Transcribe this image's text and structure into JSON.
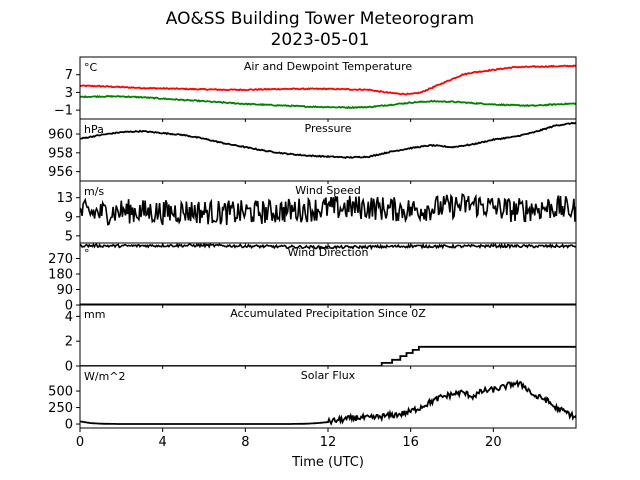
{
  "title_line1": "AO&SS Building Tower Meteorogram",
  "title_line2": "2023-05-01",
  "chart_data": {
    "type": "line",
    "xlabel": "Time (UTC)",
    "x_ticks": [
      0,
      4,
      8,
      12,
      16,
      20
    ],
    "xlim": [
      0,
      24
    ],
    "panels": [
      {
        "key": "temp",
        "title": "Air and Dewpoint Temperature",
        "unit": "°C",
        "ylim": [
          -3,
          11
        ],
        "y_ticks": [
          -1,
          3,
          7
        ],
        "y_tick_labels": [
          "−1",
          "3",
          "7"
        ],
        "series": [
          {
            "color": "#ff0000",
            "x": [
              0,
              1,
              2,
              3,
              4,
              5,
              6,
              7,
              8,
              9,
              10,
              11,
              12,
              13,
              14,
              14.5,
              15,
              15.5,
              16,
              16.5,
              17,
              17.5,
              18,
              18.5,
              19,
              19.5,
              20,
              20.5,
              21,
              22,
              23,
              24
            ],
            "y": [
              4.5,
              4.4,
              4.2,
              4.0,
              3.9,
              3.8,
              3.7,
              3.6,
              3.6,
              3.7,
              3.8,
              3.8,
              3.8,
              3.7,
              3.6,
              3.2,
              2.9,
              2.7,
              2.6,
              3.0,
              4.0,
              5.0,
              6.0,
              7.0,
              7.5,
              7.8,
              8.1,
              8.4,
              8.7,
              8.8,
              8.9,
              9.0
            ]
          },
          {
            "color": "#008000",
            "x": [
              0,
              1,
              2,
              3,
              4,
              5,
              6,
              7,
              8,
              9,
              10,
              11,
              12,
              13,
              14,
              15,
              16,
              17,
              18,
              19,
              20,
              21,
              22,
              23,
              24
            ],
            "y": [
              2.0,
              2.1,
              2.1,
              1.9,
              1.6,
              1.3,
              1.0,
              0.7,
              0.4,
              0.2,
              0.0,
              -0.2,
              -0.3,
              -0.4,
              -0.3,
              0.2,
              0.7,
              1.0,
              0.9,
              0.6,
              0.3,
              0.1,
              0.0,
              0.3,
              0.5
            ]
          }
        ]
      },
      {
        "key": "press",
        "title": "Pressure",
        "unit": "hPa",
        "ylim": [
          955,
          961.6
        ],
        "y_ticks": [
          956,
          958,
          960
        ],
        "y_tick_labels": [
          "956",
          "958",
          "960"
        ],
        "series": [
          {
            "color": "#000000",
            "x": [
              0,
              1,
              2,
              3,
              4,
              5,
              6,
              7,
              8,
              9,
              10,
              11,
              12,
              13,
              14,
              15,
              16,
              17,
              18,
              19,
              20,
              21,
              22,
              23,
              24
            ],
            "y": [
              959.5,
              959.9,
              960.2,
              960.3,
              960.1,
              959.9,
              959.5,
              959.0,
              958.6,
              958.2,
              957.9,
              957.7,
              957.6,
              957.5,
              957.6,
              958.1,
              958.5,
              958.8,
              958.6,
              958.9,
              959.4,
              959.7,
              960.2,
              960.9,
              961.2
            ]
          }
        ]
      },
      {
        "key": "wspd",
        "title": "Wind Speed",
        "unit": "m/s",
        "ylim": [
          3.5,
          16.5
        ],
        "y_ticks": [
          5,
          9,
          13
        ],
        "y_tick_labels": [
          "5",
          "9",
          "13"
        ],
        "series": [
          {
            "color": "#000000",
            "x": [
              0,
              1,
              2,
              3,
              4,
              5,
              6,
              7,
              8,
              9,
              10,
              11,
              12,
              13,
              14,
              15,
              16,
              17,
              18,
              19,
              20,
              21,
              22,
              23,
              24
            ],
            "y": [
              10.0,
              9.8,
              10.2,
              10.1,
              9.9,
              10.2,
              10.0,
              9.8,
              9.9,
              10.0,
              10.3,
              10.5,
              10.8,
              10.9,
              11.0,
              10.6,
              10.4,
              10.8,
              11.2,
              11.6,
              11.0,
              10.3,
              10.7,
              11.0,
              10.4
            ],
            "note": "noisy gusts roughly ±2.5 m/s about the trend"
          }
        ]
      },
      {
        "key": "wdir",
        "title": "Wind Direction",
        "unit": "°",
        "ylim": [
          0,
          360
        ],
        "y_ticks": [
          0,
          90,
          180,
          270
        ],
        "y_tick_labels": [
          "0",
          "90",
          "180",
          "270"
        ],
        "series": [
          {
            "color": "#000000",
            "x": [
              0,
              2,
              4,
              6,
              8,
              10,
              12,
              14,
              16,
              18,
              20,
              22,
              24
            ],
            "y": [
              345,
              343,
              345,
              346,
              342,
              338,
              335,
              337,
              342,
              340,
              343,
              341,
              342
            ]
          }
        ]
      },
      {
        "key": "precip",
        "title": "Accumulated Precipitation Since 0Z",
        "unit": "mm",
        "ylim": [
          0,
          5
        ],
        "y_ticks": [
          0,
          2,
          4
        ],
        "y_tick_labels": [
          "0",
          "2",
          "4"
        ],
        "series": [
          {
            "color": "#000000",
            "step": true,
            "x": [
              0,
              14.6,
              14.6,
              15.1,
              15.1,
              15.5,
              15.5,
              15.8,
              15.8,
              16.1,
              16.1,
              16.4,
              16.4,
              24
            ],
            "y": [
              0,
              0,
              0.25,
              0.25,
              0.5,
              0.5,
              0.8,
              0.8,
              1.05,
              1.05,
              1.3,
              1.3,
              1.55,
              1.55
            ]
          }
        ]
      },
      {
        "key": "solar",
        "title": "Solar Flux",
        "unit": "W/m^2",
        "ylim": [
          -60,
          880
        ],
        "y_ticks": [
          0,
          250,
          500
        ],
        "y_tick_labels": [
          "0",
          "250",
          "500"
        ],
        "series": [
          {
            "color": "#000000",
            "x": [
              0,
              0.5,
              1,
              2,
              4,
              6,
              8,
              10,
              11,
              11.5,
              12,
              12.5,
              13,
              13.5,
              14,
              14.5,
              15,
              15.5,
              16,
              16.5,
              17,
              17.5,
              18,
              18.5,
              19,
              19.5,
              20,
              20.5,
              21,
              21.5,
              22,
              22.5,
              23,
              23.5,
              24
            ],
            "y": [
              40,
              15,
              5,
              0,
              0,
              0,
              0,
              0,
              5,
              15,
              30,
              60,
              80,
              100,
              90,
              110,
              130,
              150,
              190,
              260,
              340,
              410,
              450,
              480,
              420,
              500,
              520,
              560,
              620,
              580,
              420,
              380,
              250,
              180,
              100
            ]
          }
        ]
      }
    ]
  }
}
